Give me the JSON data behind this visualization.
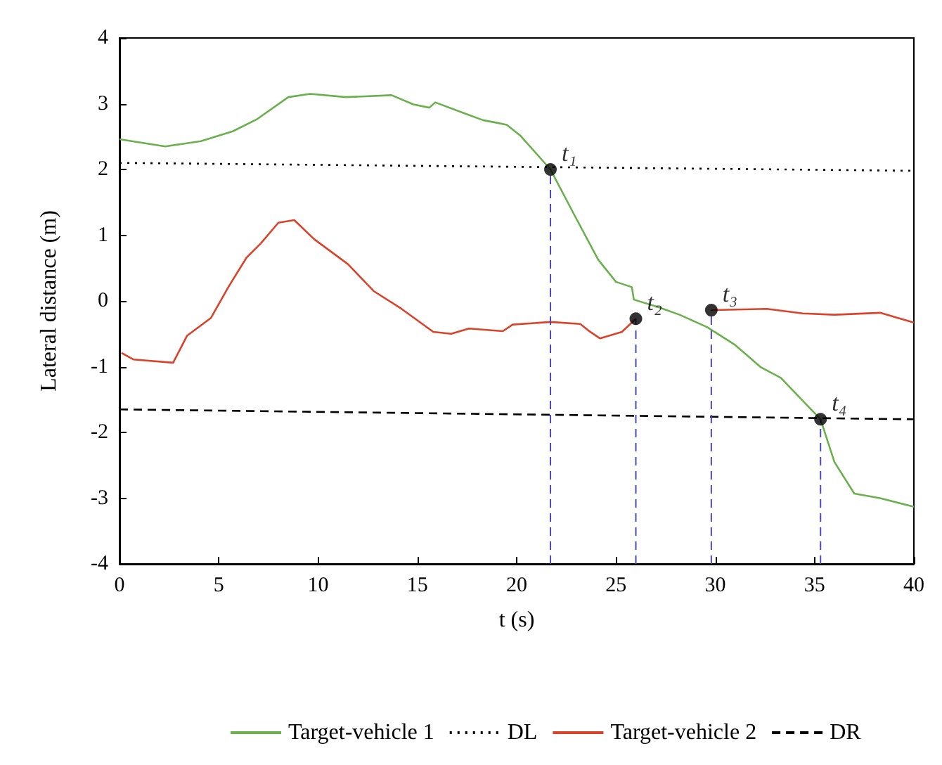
{
  "chart_data": {
    "type": "line",
    "xlabel": "t (s)",
    "ylabel": "Lateral distance (m)",
    "xlim": [
      0,
      40
    ],
    "xticks": [
      0,
      5,
      10,
      15,
      20,
      25,
      30,
      35,
      40
    ],
    "ylim": [
      -4,
      4
    ],
    "yticks": [
      -4,
      -3,
      -2,
      -1,
      0,
      1,
      2,
      3,
      4
    ],
    "grid": false,
    "legend": "bottom",
    "marker": "none",
    "series": [
      {
        "name": "Target-vehicle 1",
        "color": "#6ab04c",
        "line_style": "solid",
        "x": [
          0,
          2.3,
          4.1,
          5.7,
          6.9,
          8.5,
          9.6,
          11.4,
          13.7,
          14.8,
          15.6,
          15.9,
          17.4,
          18.3,
          19.0,
          19.5,
          20.2,
          21.7,
          22.9,
          24.1,
          25.0,
          25.8,
          25.9,
          27.1,
          28.2,
          29.6,
          31.0,
          32.3,
          33.3,
          35.3,
          36.0,
          37.0,
          38.3,
          40
        ],
        "values": [
          2.46,
          2.35,
          2.43,
          2.58,
          2.76,
          3.1,
          3.15,
          3.1,
          3.13,
          2.99,
          2.94,
          3.02,
          2.85,
          2.75,
          2.71,
          2.68,
          2.51,
          2.0,
          1.31,
          0.63,
          0.29,
          0.21,
          0.02,
          -0.09,
          -0.21,
          -0.4,
          -0.67,
          -1.01,
          -1.17,
          -1.8,
          -2.45,
          -2.93,
          -3.0,
          -3.13
        ]
      },
      {
        "name": "DL",
        "color": "#000000",
        "line_style": "dotted",
        "x": [
          0,
          40
        ],
        "values": [
          2.1,
          1.98
        ]
      },
      {
        "name": "Target-vehicle 2",
        "color": "#d9432a",
        "line_style": "solid",
        "x": [
          0.1,
          0.7,
          2.7,
          3.4,
          4.6,
          5.5,
          6.4,
          7.1,
          8.0,
          8.8,
          9.8,
          11.5,
          12.8,
          14.2,
          15.8,
          16.7,
          17.6,
          19.3,
          19.8,
          21.7,
          23.2,
          23.7,
          24.2,
          25.3,
          26.0,
          28.0,
          29.8,
          32.6,
          34.4,
          36.0,
          38.3,
          40
        ],
        "values": [
          -0.79,
          -0.89,
          -0.94,
          -0.53,
          -0.26,
          0.22,
          0.66,
          0.87,
          1.19,
          1.23,
          0.94,
          0.56,
          0.15,
          -0.12,
          -0.47,
          -0.5,
          -0.42,
          -0.46,
          -0.36,
          -0.32,
          -0.35,
          -0.47,
          -0.57,
          -0.47,
          -0.27,
          null,
          -0.14,
          -0.12,
          -0.19,
          -0.21,
          -0.18,
          -0.33
        ]
      },
      {
        "name": "DR",
        "color": "#000000",
        "line_style": "dashed",
        "x": [
          0,
          40
        ],
        "values": [
          -1.65,
          -1.8
        ]
      },
      {
        "color": "#4a4ac0",
        "line_style": "dashed",
        "x": [
          21.7,
          21.7
        ],
        "values": [
          -4,
          2.0
        ]
      },
      {
        "color": "#4a4ac0",
        "line_style": "dashed",
        "x": [
          26.0,
          26.0
        ],
        "values": [
          -4,
          -0.27
        ]
      },
      {
        "color": "#4a4ac0",
        "line_style": "dashed",
        "x": [
          29.8,
          29.8
        ],
        "values": [
          -4,
          -0.14
        ]
      },
      {
        "color": "#4a4ac0",
        "line_style": "dashed",
        "x": [
          35.3,
          35.3
        ],
        "values": [
          -4,
          -1.8
        ]
      },
      {
        "type": "scatter",
        "marker": "circle",
        "color": "#000000",
        "x": [
          21.7,
          26.0,
          29.8,
          35.3
        ],
        "values": [
          2.0,
          -0.27,
          -0.14,
          -1.8
        ]
      }
    ],
    "annotations": [
      {
        "text": "t₁",
        "x": 21.7,
        "y": 2.0
      },
      {
        "text": "t₂",
        "x": 26.0,
        "y": -0.27
      },
      {
        "text": "t₃",
        "x": 29.8,
        "y": -0.14
      },
      {
        "text": "t₄",
        "x": 35.3,
        "y": -1.8
      }
    ]
  }
}
